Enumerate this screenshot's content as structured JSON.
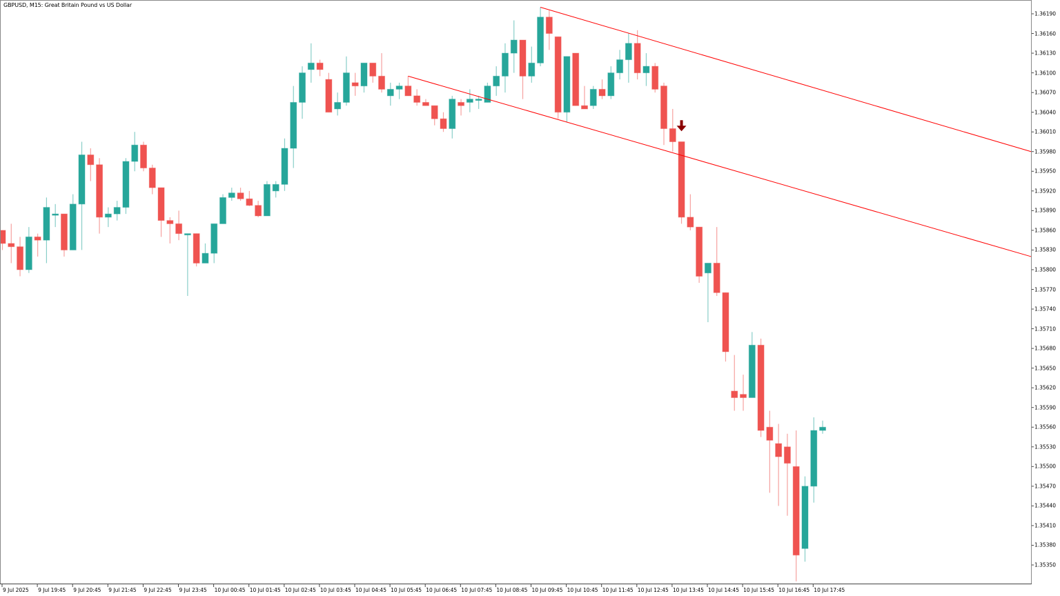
{
  "header": {
    "title": "GBPUSD, M15:  Great Britain Pound vs US Dollar"
  },
  "colors": {
    "bull": "#26a69a",
    "bear": "#ef5350",
    "trendline": "#ff0000",
    "arrow": "#8b0000",
    "axis": "#888888",
    "background": "#ffffff"
  },
  "chart_data": {
    "type": "candlestick",
    "title": "GBPUSD, M15:  Great Britain Pound vs US Dollar",
    "symbol": "GBPUSD",
    "timeframe": "M15",
    "xlabel": "",
    "ylabel": "",
    "ylim": [
      1.3532,
      1.3621
    ],
    "y_ticks": [
      "1.36190",
      "1.36160",
      "1.36130",
      "1.36100",
      "1.36070",
      "1.36040",
      "1.36010",
      "1.35980",
      "1.35950",
      "1.35920",
      "1.35890",
      "1.35860",
      "1.35830",
      "1.35800",
      "1.35770",
      "1.35740",
      "1.35710",
      "1.35680",
      "1.35650",
      "1.35620",
      "1.35590",
      "1.35560",
      "1.35530",
      "1.35500",
      "1.35470",
      "1.35440",
      "1.35410",
      "1.35380",
      "1.35350"
    ],
    "x_ticks": [
      "9 Jul 2025",
      "9 Jul 19:45",
      "9 Jul 20:45",
      "9 Jul 21:45",
      "9 Jul 22:45",
      "9 Jul 23:45",
      "10 Jul 00:45",
      "10 Jul 01:45",
      "10 Jul 02:45",
      "10 Jul 03:45",
      "10 Jul 04:45",
      "10 Jul 05:45",
      "10 Jul 06:45",
      "10 Jul 07:45",
      "10 Jul 08:45",
      "10 Jul 09:45",
      "10 Jul 10:45",
      "10 Jul 11:45",
      "10 Jul 12:45",
      "10 Jul 13:45",
      "10 Jul 14:45",
      "10 Jul 15:45",
      "10 Jul 16:45",
      "10 Jul 17:45"
    ],
    "grid": false,
    "legend": "none",
    "candles_pixel_note": "o,h,l,c given as prices",
    "candles": [
      {
        "o": 1.3586,
        "h": 1.3586,
        "l": 1.3583,
        "c": 1.3584
      },
      {
        "o": 1.3584,
        "h": 1.3587,
        "l": 1.3581,
        "c": 1.35835
      },
      {
        "o": 1.35835,
        "h": 1.3585,
        "l": 1.3579,
        "c": 1.358
      },
      {
        "o": 1.358,
        "h": 1.35865,
        "l": 1.35795,
        "c": 1.3585
      },
      {
        "o": 1.3585,
        "h": 1.35855,
        "l": 1.3582,
        "c": 1.35845
      },
      {
        "o": 1.35845,
        "h": 1.3591,
        "l": 1.3581,
        "c": 1.35895
      },
      {
        "o": 1.35885,
        "h": 1.359,
        "l": 1.35865,
        "c": 1.35885
      },
      {
        "o": 1.35885,
        "h": 1.35885,
        "l": 1.3582,
        "c": 1.3583
      },
      {
        "o": 1.3583,
        "h": 1.35915,
        "l": 1.3583,
        "c": 1.359
      },
      {
        "o": 1.359,
        "h": 1.35995,
        "l": 1.3583,
        "c": 1.35975
      },
      {
        "o": 1.35975,
        "h": 1.35985,
        "l": 1.35935,
        "c": 1.3596
      },
      {
        "o": 1.3596,
        "h": 1.3597,
        "l": 1.35855,
        "c": 1.3588
      },
      {
        "o": 1.3588,
        "h": 1.35895,
        "l": 1.35865,
        "c": 1.35885
      },
      {
        "o": 1.35885,
        "h": 1.35905,
        "l": 1.35875,
        "c": 1.35895
      },
      {
        "o": 1.35895,
        "h": 1.3597,
        "l": 1.35885,
        "c": 1.35965
      },
      {
        "o": 1.35965,
        "h": 1.3601,
        "l": 1.3595,
        "c": 1.3599
      },
      {
        "o": 1.3599,
        "h": 1.35995,
        "l": 1.3595,
        "c": 1.35955
      },
      {
        "o": 1.35955,
        "h": 1.3596,
        "l": 1.35915,
        "c": 1.35925
      },
      {
        "o": 1.35925,
        "h": 1.35925,
        "l": 1.3585,
        "c": 1.35875
      },
      {
        "o": 1.35875,
        "h": 1.3588,
        "l": 1.3584,
        "c": 1.3587
      },
      {
        "o": 1.3587,
        "h": 1.3589,
        "l": 1.35845,
        "c": 1.35855
      },
      {
        "o": 1.35855,
        "h": 1.35855,
        "l": 1.3576,
        "c": 1.35855
      },
      {
        "o": 1.35855,
        "h": 1.35855,
        "l": 1.35805,
        "c": 1.3581
      },
      {
        "o": 1.3581,
        "h": 1.3584,
        "l": 1.3581,
        "c": 1.35825
      },
      {
        "o": 1.35825,
        "h": 1.3587,
        "l": 1.3581,
        "c": 1.3587
      },
      {
        "o": 1.3587,
        "h": 1.35915,
        "l": 1.3587,
        "c": 1.3591
      },
      {
        "o": 1.3591,
        "h": 1.35925,
        "l": 1.35905,
        "c": 1.35917
      },
      {
        "o": 1.35917,
        "h": 1.35925,
        "l": 1.35905,
        "c": 1.35908
      },
      {
        "o": 1.35908,
        "h": 1.3592,
        "l": 1.35897,
        "c": 1.35898
      },
      {
        "o": 1.35898,
        "h": 1.35905,
        "l": 1.3588,
        "c": 1.35882
      },
      {
        "o": 1.35882,
        "h": 1.35935,
        "l": 1.35882,
        "c": 1.3593
      },
      {
        "o": 1.3592,
        "h": 1.35935,
        "l": 1.3591,
        "c": 1.3593
      },
      {
        "o": 1.3593,
        "h": 1.36,
        "l": 1.3592,
        "c": 1.35985
      },
      {
        "o": 1.35985,
        "h": 1.3608,
        "l": 1.35955,
        "c": 1.36055
      },
      {
        "o": 1.36055,
        "h": 1.3611,
        "l": 1.3603,
        "c": 1.361
      },
      {
        "o": 1.36105,
        "h": 1.36145,
        "l": 1.36085,
        "c": 1.36115
      },
      {
        "o": 1.36115,
        "h": 1.3612,
        "l": 1.36095,
        "c": 1.36105
      },
      {
        "o": 1.3609,
        "h": 1.361,
        "l": 1.3604,
        "c": 1.3604
      },
      {
        "o": 1.36045,
        "h": 1.3607,
        "l": 1.36035,
        "c": 1.36055
      },
      {
        "o": 1.36055,
        "h": 1.36125,
        "l": 1.3605,
        "c": 1.361
      },
      {
        "o": 1.36085,
        "h": 1.361,
        "l": 1.36065,
        "c": 1.3608
      },
      {
        "o": 1.3608,
        "h": 1.36115,
        "l": 1.3607,
        "c": 1.36115
      },
      {
        "o": 1.36115,
        "h": 1.36115,
        "l": 1.36085,
        "c": 1.36095
      },
      {
        "o": 1.36095,
        "h": 1.3613,
        "l": 1.3607,
        "c": 1.36075
      },
      {
        "o": 1.36065,
        "h": 1.36085,
        "l": 1.3605,
        "c": 1.36075
      },
      {
        "o": 1.36075,
        "h": 1.36085,
        "l": 1.3606,
        "c": 1.3608
      },
      {
        "o": 1.3608,
        "h": 1.36095,
        "l": 1.36065,
        "c": 1.36065
      },
      {
        "o": 1.36065,
        "h": 1.36075,
        "l": 1.3605,
        "c": 1.36055
      },
      {
        "o": 1.36055,
        "h": 1.3606,
        "l": 1.3605,
        "c": 1.3605
      },
      {
        "o": 1.3605,
        "h": 1.3605,
        "l": 1.3602,
        "c": 1.3603
      },
      {
        "o": 1.3603,
        "h": 1.3604,
        "l": 1.3601,
        "c": 1.36015
      },
      {
        "o": 1.36015,
        "h": 1.36065,
        "l": 1.36,
        "c": 1.3606
      },
      {
        "o": 1.36055,
        "h": 1.3606,
        "l": 1.36035,
        "c": 1.3605
      },
      {
        "o": 1.36055,
        "h": 1.36075,
        "l": 1.3604,
        "c": 1.3606
      },
      {
        "o": 1.3606,
        "h": 1.36065,
        "l": 1.36045,
        "c": 1.3606
      },
      {
        "o": 1.36055,
        "h": 1.36085,
        "l": 1.36055,
        "c": 1.3608
      },
      {
        "o": 1.3608,
        "h": 1.3611,
        "l": 1.36065,
        "c": 1.36095
      },
      {
        "o": 1.36095,
        "h": 1.36145,
        "l": 1.3607,
        "c": 1.3613
      },
      {
        "o": 1.3613,
        "h": 1.3618,
        "l": 1.361,
        "c": 1.3615
      },
      {
        "o": 1.3615,
        "h": 1.3615,
        "l": 1.3606,
        "c": 1.36095
      },
      {
        "o": 1.36095,
        "h": 1.3614,
        "l": 1.36085,
        "c": 1.36115
      },
      {
        "o": 1.36115,
        "h": 1.362,
        "l": 1.3611,
        "c": 1.36185
      },
      {
        "o": 1.36185,
        "h": 1.36195,
        "l": 1.36135,
        "c": 1.3616
      },
      {
        "o": 1.36155,
        "h": 1.36155,
        "l": 1.3603,
        "c": 1.3604
      },
      {
        "o": 1.3604,
        "h": 1.36125,
        "l": 1.36025,
        "c": 1.36125
      },
      {
        "o": 1.3613,
        "h": 1.3613,
        "l": 1.3605,
        "c": 1.3605
      },
      {
        "o": 1.3605,
        "h": 1.3608,
        "l": 1.36045,
        "c": 1.36045
      },
      {
        "o": 1.3605,
        "h": 1.3608,
        "l": 1.36045,
        "c": 1.36075
      },
      {
        "o": 1.36075,
        "h": 1.3609,
        "l": 1.3606,
        "c": 1.36065
      },
      {
        "o": 1.36065,
        "h": 1.3611,
        "l": 1.3606,
        "c": 1.361
      },
      {
        "o": 1.361,
        "h": 1.36135,
        "l": 1.3609,
        "c": 1.3612
      },
      {
        "o": 1.3612,
        "h": 1.3616,
        "l": 1.36085,
        "c": 1.36145
      },
      {
        "o": 1.36145,
        "h": 1.36165,
        "l": 1.3609,
        "c": 1.361
      },
      {
        "o": 1.361,
        "h": 1.3613,
        "l": 1.3608,
        "c": 1.3611
      },
      {
        "o": 1.3611,
        "h": 1.36115,
        "l": 1.3607,
        "c": 1.36075
      },
      {
        "o": 1.3608,
        "h": 1.36085,
        "l": 1.3599,
        "c": 1.36015
      },
      {
        "o": 1.36015,
        "h": 1.36045,
        "l": 1.3598,
        "c": 1.35995
      },
      {
        "o": 1.35995,
        "h": 1.35995,
        "l": 1.3587,
        "c": 1.3588
      },
      {
        "o": 1.3588,
        "h": 1.35915,
        "l": 1.3586,
        "c": 1.35865
      },
      {
        "o": 1.35865,
        "h": 1.35865,
        "l": 1.3578,
        "c": 1.3579
      },
      {
        "o": 1.35795,
        "h": 1.3581,
        "l": 1.3572,
        "c": 1.3581
      },
      {
        "o": 1.3581,
        "h": 1.35865,
        "l": 1.3576,
        "c": 1.35765
      },
      {
        "o": 1.35765,
        "h": 1.35765,
        "l": 1.3566,
        "c": 1.35675
      },
      {
        "o": 1.35615,
        "h": 1.3567,
        "l": 1.35585,
        "c": 1.35605
      },
      {
        "o": 1.3561,
        "h": 1.3564,
        "l": 1.35585,
        "c": 1.35605
      },
      {
        "o": 1.35605,
        "h": 1.35705,
        "l": 1.35605,
        "c": 1.35685
      },
      {
        "o": 1.35685,
        "h": 1.35695,
        "l": 1.35545,
        "c": 1.35555
      },
      {
        "o": 1.3556,
        "h": 1.35585,
        "l": 1.3546,
        "c": 1.3554
      },
      {
        "o": 1.35535,
        "h": 1.35565,
        "l": 1.3544,
        "c": 1.35515
      },
      {
        "o": 1.3553,
        "h": 1.3555,
        "l": 1.35425,
        "c": 1.35505
      },
      {
        "o": 1.355,
        "h": 1.35555,
        "l": 1.35325,
        "c": 1.35365
      },
      {
        "o": 1.35375,
        "h": 1.35485,
        "l": 1.35355,
        "c": 1.3547
      },
      {
        "o": 1.3547,
        "h": 1.35575,
        "l": 1.35445,
        "c": 1.35555
      },
      {
        "o": 1.35555,
        "h": 1.3557,
        "l": 1.3555,
        "c": 1.3556
      }
    ],
    "annotations": [
      {
        "type": "trendline",
        "name": "upper-channel-line",
        "from": {
          "time_index": 61,
          "price": 1.362
        },
        "to": {
          "price_at_right_edge": 1.3598
        }
      },
      {
        "type": "trendline",
        "name": "lower-channel-line",
        "from": {
          "time_index": 46,
          "price": 1.36095
        },
        "to": {
          "price_at_right_edge": 1.3582
        }
      },
      {
        "type": "sell-arrow",
        "time_index": 77,
        "price": 1.3601
      }
    ]
  }
}
